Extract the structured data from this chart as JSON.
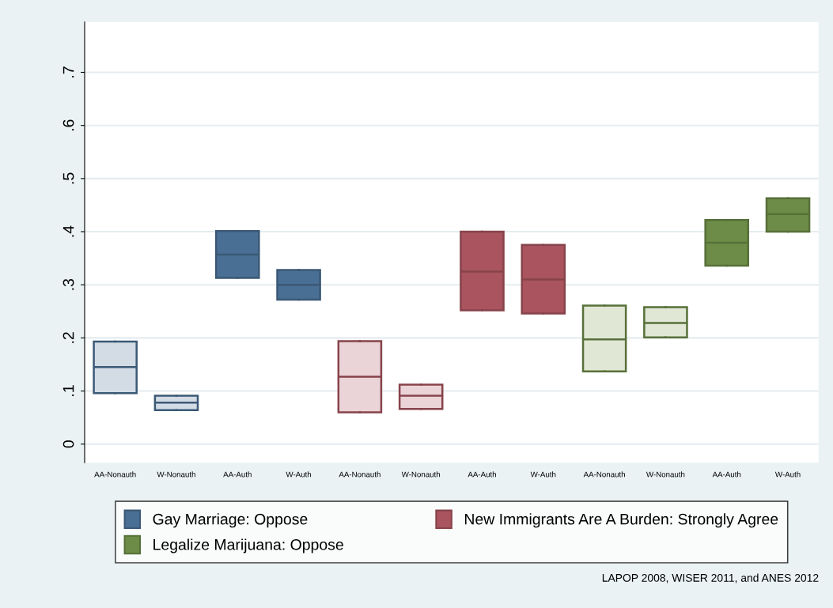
{
  "chart_data": {
    "type": "box",
    "categories": [
      "AA-Nonauth",
      "W-Nonauth",
      "AA-Auth",
      "W-Auth",
      "AA-Nonauth",
      "W-Nonauth",
      "AA-Auth",
      "W-Auth",
      "AA-Nonauth",
      "W-Nonauth",
      "AA-Auth",
      "W-Auth"
    ],
    "series": [
      {
        "name": "Gay Marriage: Oppose",
        "color": "#4a6f94",
        "colors": [
          "#d3dbe5",
          "#d3dbe5",
          "#4a6f94",
          "#4a6f94",
          null,
          null,
          null,
          null,
          null,
          null,
          null,
          null
        ],
        "boxes": [
          {
            "low": 0.096,
            "q1": 0.096,
            "median": 0.145,
            "q3": 0.193,
            "high": 0.193
          },
          {
            "low": 0.064,
            "q1": 0.064,
            "median": 0.078,
            "q3": 0.091,
            "high": 0.091
          },
          {
            "low": 0.313,
            "q1": 0.313,
            "median": 0.357,
            "q3": 0.401,
            "high": 0.401
          },
          {
            "low": 0.272,
            "q1": 0.272,
            "median": 0.3,
            "q3": 0.328,
            "high": 0.328
          },
          null,
          null,
          null,
          null,
          null,
          null,
          null,
          null
        ]
      },
      {
        "name": "New Immigrants Are A Burden: Strongly Agree",
        "color": "#a9545e",
        "colors": [
          null,
          null,
          null,
          null,
          "#ead4d7",
          "#ead4d7",
          "#a9545e",
          "#a9545e",
          null,
          null,
          null,
          null
        ],
        "boxes": [
          null,
          null,
          null,
          null,
          {
            "low": 0.06,
            "q1": 0.06,
            "median": 0.127,
            "q3": 0.194,
            "high": 0.194
          },
          {
            "low": 0.066,
            "q1": 0.066,
            "median": 0.091,
            "q3": 0.112,
            "high": 0.112
          },
          {
            "low": 0.252,
            "q1": 0.252,
            "median": 0.325,
            "q3": 0.4,
            "high": 0.4
          },
          {
            "low": 0.246,
            "q1": 0.246,
            "median": 0.31,
            "q3": 0.375,
            "high": 0.375
          },
          null,
          null,
          null,
          null
        ]
      },
      {
        "name": "Legalize Marijuana: Oppose",
        "color": "#6d8c47",
        "colors": [
          null,
          null,
          null,
          null,
          null,
          null,
          null,
          null,
          "#e1e7d5",
          "#e1e7d5",
          "#6d8c47",
          "#6d8c47"
        ],
        "boxes": [
          null,
          null,
          null,
          null,
          null,
          null,
          null,
          null,
          {
            "low": 0.137,
            "q1": 0.137,
            "median": 0.197,
            "q3": 0.261,
            "high": 0.261
          },
          {
            "low": 0.201,
            "q1": 0.201,
            "median": 0.228,
            "q3": 0.258,
            "high": 0.258
          },
          {
            "low": 0.336,
            "q1": 0.336,
            "median": 0.379,
            "q3": 0.422,
            "high": 0.422
          },
          {
            "low": 0.4,
            "q1": 0.4,
            "median": 0.433,
            "q3": 0.463,
            "high": 0.463
          }
        ]
      }
    ],
    "ylim": [
      -0.035,
      0.795
    ],
    "yticks": [
      0,
      {
        "value": 0.1,
        "label": ".1"
      },
      {
        "value": 0.2,
        "label": ".2"
      },
      {
        "value": 0.3,
        "label": ".3"
      },
      {
        "value": 0.4,
        "label": ".4"
      },
      {
        "value": 0.5,
        "label": ".5"
      },
      {
        "value": 0.6,
        "label": ".6"
      },
      {
        "value": 0.7,
        "label": ".7"
      }
    ],
    "grid": "y",
    "legend": "bottom",
    "annotations": [
      "LAPOP 2008, WISER 2011, and ANES 2012"
    ]
  }
}
